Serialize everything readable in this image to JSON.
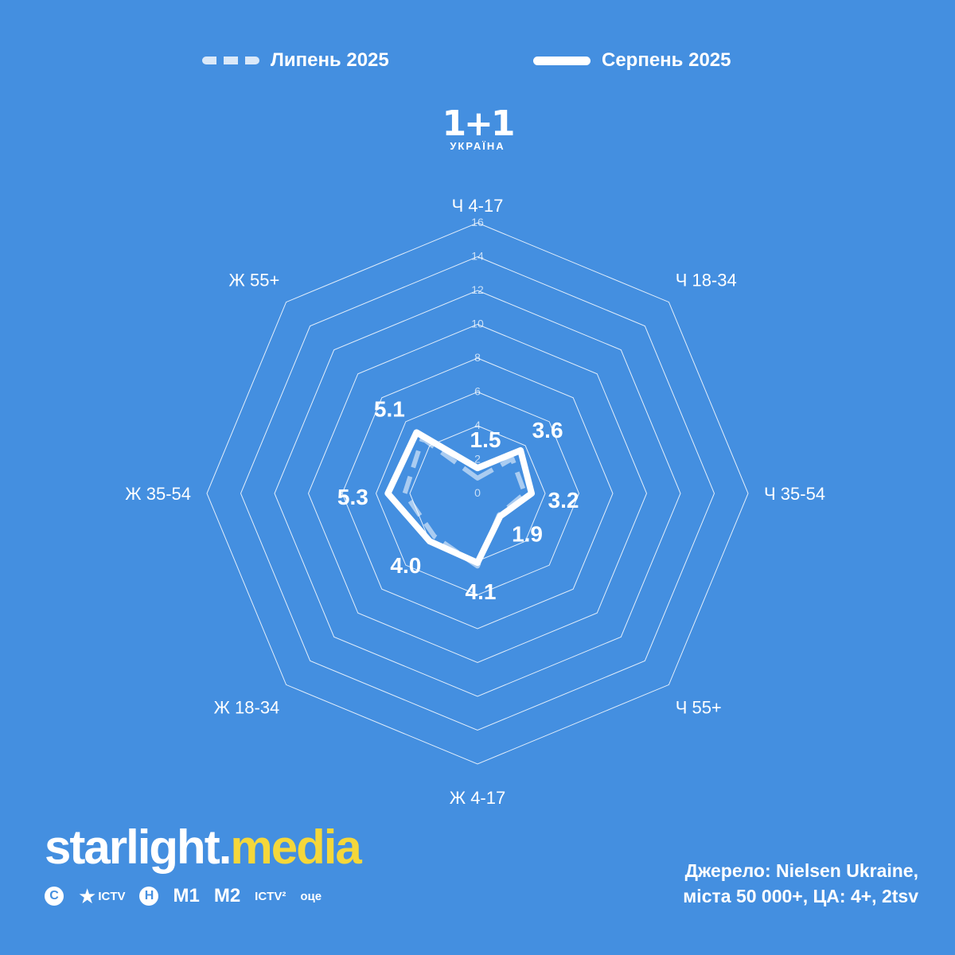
{
  "legend": {
    "july_label": "Липень 2025",
    "august_label": "Серпень 2025"
  },
  "channel_logo": {
    "mark": "1+1",
    "subtitle": "УКРАЇНА"
  },
  "chart_data": {
    "type": "radar",
    "axes": [
      "Ч 4-17",
      "Ч 18-34",
      "Ч 35-54",
      "Ч 55+",
      "Ж 4-17",
      "Ж 18-34",
      "Ж 35-54",
      "Ж 55+"
    ],
    "rlim": [
      0,
      16
    ],
    "ticks": [
      0,
      2,
      4,
      6,
      8,
      10,
      12,
      14,
      16
    ],
    "grid_rings": [
      4,
      6,
      8,
      10,
      12,
      14,
      16
    ],
    "series": [
      {
        "name": "Липень 2025",
        "style": "dashed",
        "values": [
          0.9,
          2.9,
          2.8,
          1.8,
          4.3,
          3.6,
          4.3,
          4.6
        ]
      },
      {
        "name": "Серпень 2025",
        "style": "solid",
        "values": [
          1.5,
          3.6,
          3.2,
          1.9,
          4.1,
          4.0,
          5.3,
          5.1
        ],
        "data_labels": [
          "1.5",
          "3.6",
          "3.2",
          "1.9",
          "4.1",
          "4.0",
          "5.3",
          "5.1"
        ]
      }
    ],
    "colors": {
      "background": "#448fe0",
      "line": "#ffffff"
    }
  },
  "brand": {
    "name_part1": "starlight",
    "name_dot": ".",
    "name_part2": "media",
    "accent_color": "#f5d73a",
    "channels": [
      {
        "icon": "stb-icon",
        "text": "С"
      },
      {
        "icon": "ictv-icon",
        "text": "ICTV"
      },
      {
        "icon": "novyi-icon",
        "text": "Н"
      },
      {
        "icon": "m1-icon",
        "text": "M1"
      },
      {
        "icon": "m2-icon",
        "text": "M2"
      },
      {
        "icon": "ictv2-icon",
        "text": "ICTV²"
      },
      {
        "icon": "oce-icon",
        "text": "оце"
      }
    ]
  },
  "source": {
    "line1": "Джерело: Nielsen Ukraine,",
    "line2": "міста 50 000+, ЦА: 4+, 2tsv"
  }
}
